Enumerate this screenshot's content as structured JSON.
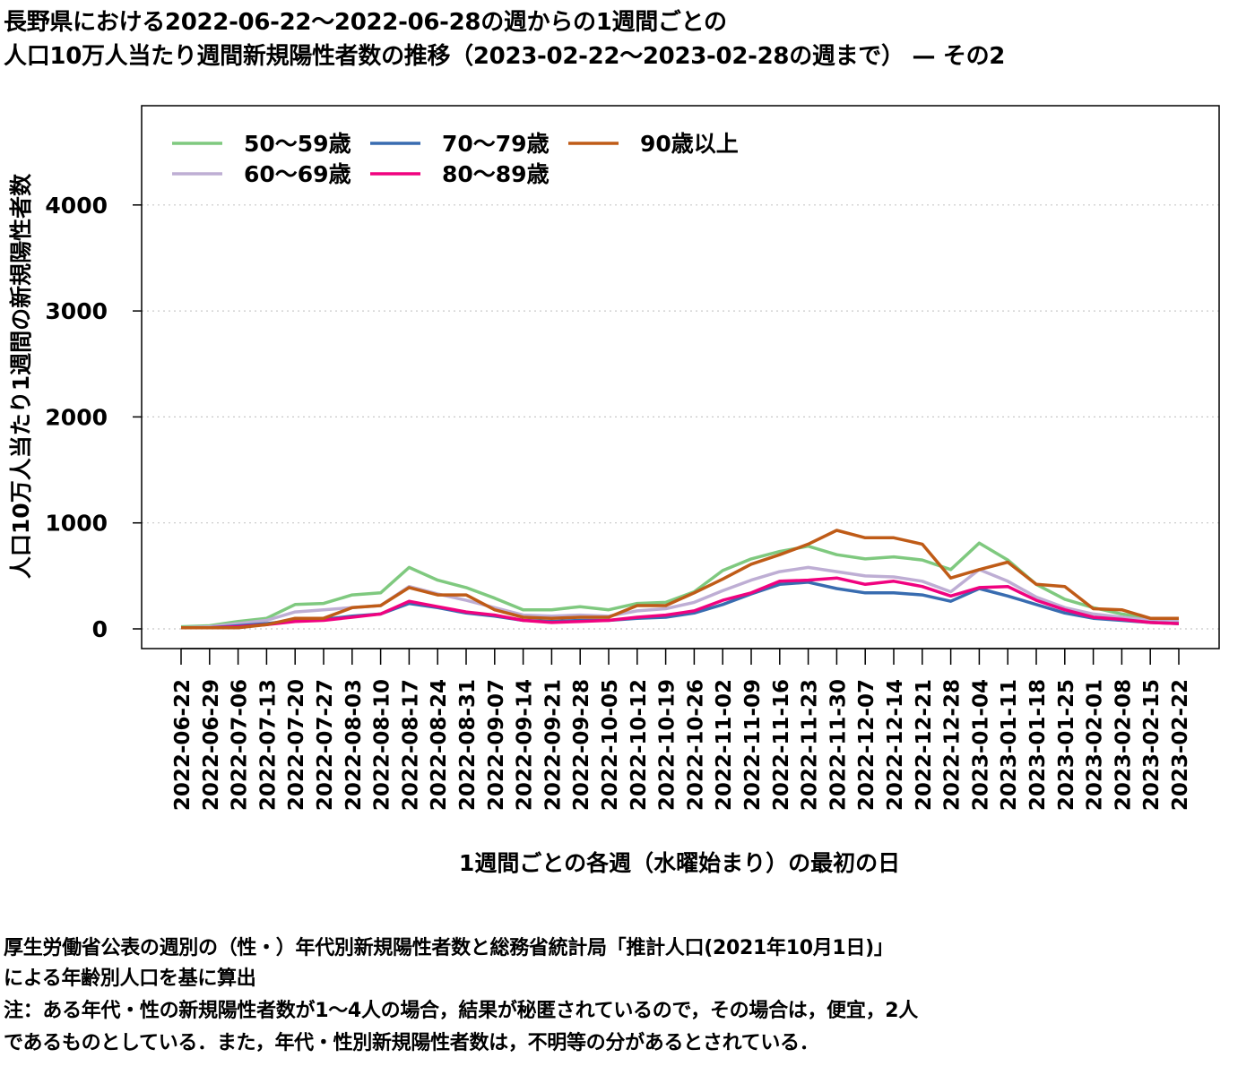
{
  "title_line1": "長野県における2022-06-22～2022-06-28の週からの1週間ごとの",
  "title_line2": "人口10万人当たり週間新規陽性者数の推移（2023-02-22～2023-02-28の週まで） — その2",
  "notes": [
    "厚生労働省公表の週別の（性・）年代別新規陽性者数と総務省統計局「推計人口(2021年10月1日)」",
    "による年齢別人口を基に算出",
    "注：ある年代・性の新規陽性者数が1～4人の場合，結果が秘匿されているので，その場合は，便宜，2人",
    "であるものとしている．また，年代・性別新規陽性者数は，不明等の分があるとされている．"
  ],
  "chart_data": {
    "type": "line",
    "xlabel": "1週間ごとの各週（水曜始まり）の最初の日",
    "ylabel": "人口10万人当たり1週間の新規陽性者数",
    "ylim": [
      -150,
      4950
    ],
    "yticks": [
      0,
      1000,
      2000,
      3000,
      4000
    ],
    "grid": true,
    "legend_position": "top-left",
    "x": [
      "2022-06-22",
      "2022-06-29",
      "2022-07-06",
      "2022-07-13",
      "2022-07-20",
      "2022-07-27",
      "2022-08-03",
      "2022-08-10",
      "2022-08-17",
      "2022-08-24",
      "2022-08-31",
      "2022-09-07",
      "2022-09-14",
      "2022-09-21",
      "2022-09-28",
      "2022-10-05",
      "2022-10-12",
      "2022-10-19",
      "2022-10-26",
      "2022-11-02",
      "2022-11-09",
      "2022-11-16",
      "2022-11-23",
      "2022-11-30",
      "2022-12-07",
      "2022-12-14",
      "2022-12-21",
      "2022-12-28",
      "2023-01-04",
      "2023-01-11",
      "2023-01-18",
      "2023-01-25",
      "2023-02-01",
      "2023-02-08",
      "2023-02-15",
      "2023-02-22"
    ],
    "series": [
      {
        "name": "50～59歳",
        "color": "#7fc97f",
        "values": [
          20,
          30,
          70,
          100,
          230,
          240,
          320,
          340,
          580,
          460,
          390,
          290,
          180,
          180,
          210,
          180,
          240,
          250,
          350,
          550,
          660,
          730,
          780,
          700,
          660,
          680,
          650,
          560,
          810,
          650,
          420,
          280,
          200,
          140,
          100,
          90
        ]
      },
      {
        "name": "60～69歳",
        "color": "#beaed4",
        "values": [
          10,
          20,
          50,
          80,
          160,
          180,
          200,
          220,
          400,
          330,
          270,
          200,
          130,
          120,
          130,
          120,
          170,
          190,
          250,
          360,
          460,
          540,
          580,
          540,
          500,
          490,
          450,
          350,
          560,
          450,
          300,
          200,
          140,
          110,
          80,
          70
        ]
      },
      {
        "name": "70～79歳",
        "color": "#386cb0",
        "values": [
          10,
          10,
          30,
          50,
          80,
          90,
          120,
          140,
          240,
          200,
          150,
          120,
          80,
          70,
          80,
          80,
          100,
          110,
          150,
          230,
          330,
          420,
          440,
          380,
          340,
          340,
          320,
          260,
          380,
          310,
          230,
          150,
          100,
          80,
          60,
          50
        ]
      },
      {
        "name": "80～89歳",
        "color": "#f0027f",
        "values": [
          10,
          10,
          20,
          40,
          70,
          80,
          110,
          140,
          260,
          210,
          160,
          130,
          80,
          60,
          70,
          80,
          110,
          130,
          170,
          270,
          340,
          450,
          460,
          480,
          420,
          450,
          400,
          310,
          390,
          400,
          270,
          180,
          110,
          90,
          60,
          50
        ]
      },
      {
        "name": "90歳以上",
        "color": "#bf5b17",
        "values": [
          10,
          10,
          10,
          40,
          100,
          100,
          200,
          220,
          390,
          320,
          320,
          180,
          110,
          100,
          110,
          110,
          220,
          220,
          340,
          470,
          610,
          700,
          800,
          930,
          860,
          860,
          800,
          480,
          560,
          630,
          420,
          400,
          190,
          180,
          100,
          100
        ]
      }
    ]
  }
}
